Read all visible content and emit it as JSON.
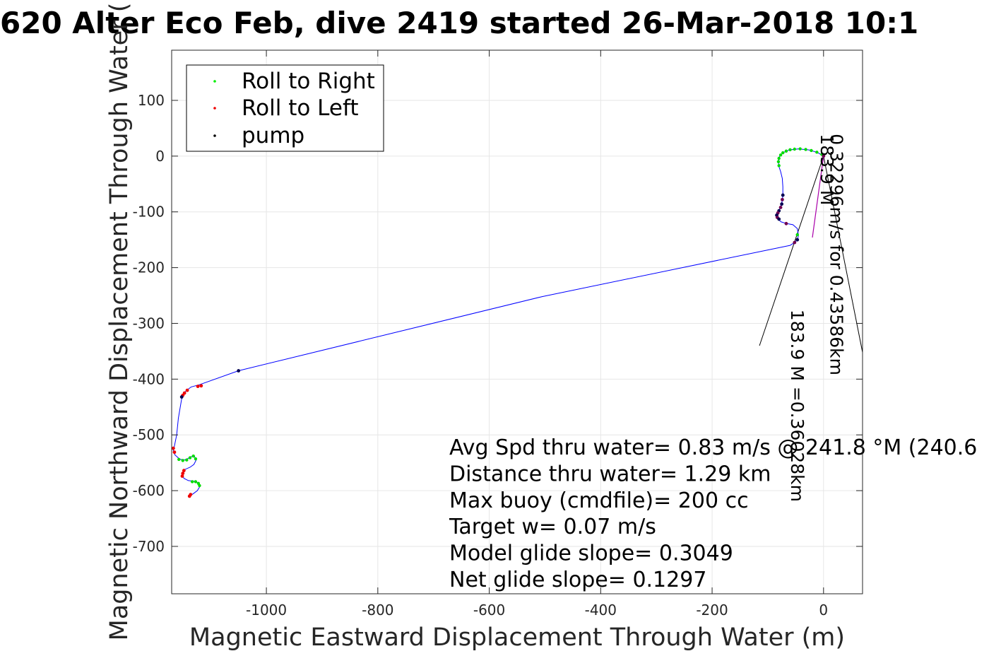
{
  "chart_data": {
    "type": "line",
    "title": "620 Alter Eco Feb, dive 2419 started 26-Mar-2018 10:1",
    "xlabel": "Magnetic Eastward Displacement Through Water (m)",
    "ylabel": "Magnetic Northward Displacement Through Water (",
    "xlim": [
      -1170,
      70
    ],
    "ylim": [
      -785,
      190
    ],
    "xticks": [
      -1000,
      -800,
      -600,
      -400,
      -200,
      0
    ],
    "xtick_labels": [
      "-1000",
      "-800",
      "-600",
      "-400",
      "-200",
      "0"
    ],
    "yticks": [
      100,
      0,
      -100,
      -200,
      -300,
      -400,
      -500,
      -600,
      -700
    ],
    "ytick_labels": [
      "100",
      "0",
      "-100",
      "-200",
      "-300",
      "-400",
      "-500",
      "-600",
      "-700"
    ],
    "grid": true,
    "legend_position": "top-left",
    "legend": [
      {
        "label": "Roll to Right",
        "color": "#00ee00"
      },
      {
        "label": "Roll to Left",
        "color": "#ee0000"
      },
      {
        "label": "pump",
        "color": "#000000"
      }
    ],
    "track": {
      "color": "#0000ff",
      "points": [
        [
          0,
          0
        ],
        [
          -10,
          6
        ],
        [
          -25,
          11
        ],
        [
          -45,
          13
        ],
        [
          -62,
          11
        ],
        [
          -73,
          6
        ],
        [
          -79,
          -1
        ],
        [
          -81,
          -10
        ],
        [
          -80,
          -19
        ],
        [
          -77,
          -28
        ],
        [
          -74,
          -40
        ],
        [
          -73,
          -55
        ],
        [
          -73,
          -70
        ],
        [
          -75,
          -85
        ],
        [
          -80,
          -98
        ],
        [
          -84,
          -107
        ],
        [
          -82,
          -113
        ],
        [
          -76,
          -118
        ],
        [
          -66,
          -121
        ],
        [
          -55,
          -123
        ],
        [
          -47,
          -130
        ],
        [
          -45,
          -142
        ],
        [
          -47,
          -150
        ],
        [
          -52,
          -155
        ],
        [
          -60,
          -160
        ],
        [
          -505,
          -252
        ],
        [
          -1050,
          -385
        ],
        [
          -1120,
          -410
        ],
        [
          -1135,
          -414
        ],
        [
          -1143,
          -420
        ],
        [
          -1148,
          -425
        ],
        [
          -1152,
          -435
        ],
        [
          -1158,
          -470
        ],
        [
          -1161,
          -500
        ],
        [
          -1165,
          -520
        ],
        [
          -1167,
          -528
        ],
        [
          -1164,
          -536
        ],
        [
          -1155,
          -544
        ],
        [
          -1145,
          -545
        ],
        [
          -1137,
          -540
        ],
        [
          -1130,
          -537
        ],
        [
          -1126,
          -545
        ],
        [
          -1130,
          -553
        ],
        [
          -1137,
          -558
        ],
        [
          -1146,
          -562
        ],
        [
          -1152,
          -570
        ],
        [
          -1148,
          -578
        ],
        [
          -1140,
          -582
        ],
        [
          -1130,
          -583
        ],
        [
          -1122,
          -586
        ],
        [
          -1119,
          -592
        ],
        [
          -1124,
          -600
        ],
        [
          -1132,
          -606
        ],
        [
          -1138,
          -611
        ]
      ]
    },
    "roll_right_points": [
      [
        -3,
        3
      ],
      [
        -12,
        7
      ],
      [
        -22,
        10
      ],
      [
        -32,
        12
      ],
      [
        -42,
        13
      ],
      [
        -52,
        12.5
      ],
      [
        -60,
        11.5
      ],
      [
        -67,
        9
      ],
      [
        -73,
        6
      ],
      [
        -77,
        2
      ],
      [
        -80,
        -4
      ],
      [
        -81,
        -10
      ],
      [
        -80,
        -17
      ],
      [
        -47,
        -141
      ],
      [
        -1157,
        -544
      ],
      [
        -1150,
        -546
      ],
      [
        -1143,
        -545
      ],
      [
        -1137,
        -541
      ],
      [
        -1131,
        -538
      ],
      [
        -1127,
        -543
      ],
      [
        -1133,
        -584
      ],
      [
        -1127,
        -584
      ],
      [
        -1122,
        -587
      ],
      [
        -1120,
        -591
      ]
    ],
    "roll_left_points": [
      [
        -1117,
        -412
      ],
      [
        -1123,
        -413
      ],
      [
        -1142,
        -420
      ],
      [
        -1147,
        -425
      ],
      [
        -1150,
        -429
      ],
      [
        -1167,
        -524
      ],
      [
        -1165,
        -531
      ],
      [
        -1148,
        -564
      ],
      [
        -1150,
        -569
      ],
      [
        -1151,
        -574
      ],
      [
        -1138,
        -610
      ],
      [
        -1136,
        -607
      ]
    ],
    "pump_points": [
      [
        -73,
        -70
      ],
      [
        -74,
        -78
      ],
      [
        -75,
        -86
      ],
      [
        -77,
        -92
      ],
      [
        -80,
        -98
      ],
      [
        -82,
        -102
      ],
      [
        -84,
        -106
      ],
      [
        -83,
        -110
      ],
      [
        -80,
        -113
      ],
      [
        -67,
        -121
      ],
      [
        -47,
        -150
      ],
      [
        -52,
        -155
      ],
      [
        -1050,
        -385
      ],
      [
        0,
        0
      ],
      [
        -1152,
        -432
      ]
    ],
    "pump_marker_colors": [
      "#000050",
      "#700050"
    ],
    "current_arrow": {
      "color": "#aa00aa",
      "from": [
        0,
        0
      ],
      "to": [
        -20,
        -146
      ]
    },
    "aux_lines": [
      {
        "from": [
          0,
          0
        ],
        "to": [
          -115,
          -340
        ],
        "color": "#000000"
      },
      {
        "from": [
          0,
          0
        ],
        "to": [
          70,
          -352
        ],
        "color": "#000000"
      }
    ],
    "rotated_annotations": [
      {
        "text": "0.32296m/s for 0.43586km",
        "x": 12,
        "y": 40,
        "angle": 90
      },
      {
        "text": "183.9 M",
        "x": -5,
        "y": 40,
        "angle": 90
      },
      {
        "text": "183.9 M =0.36028km",
        "x": -58,
        "y": -275,
        "angle": 90
      }
    ],
    "stats_lines": [
      "Avg Spd thru water=  0.83 m/s @ 241.8 °M (240.6",
      "Distance thru water=  1.29 km",
      "Max buoy (cmdfile)= 200 cc",
      "Target w= 0.07 m/s",
      "Model glide slope= 0.3049",
      "Net glide slope= 0.1297"
    ]
  },
  "colors": {
    "background": "#ffffff",
    "axes_edge": "#262626",
    "grid": "#e6e6e6"
  }
}
